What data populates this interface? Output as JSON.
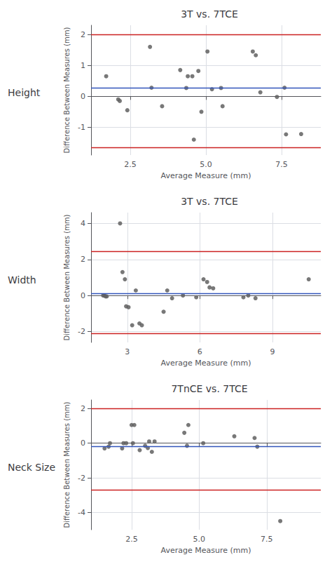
{
  "chart_data": [
    {
      "type": "scatter",
      "title": "3T vs. 7TCE",
      "annotations": [
        "Height"
      ],
      "xlabel": "Average Measure (mm)",
      "ylabel": "Difference Between Measures (mm)",
      "x": [
        1.7,
        2.1,
        2.15,
        2.4,
        3.15,
        3.2,
        3.55,
        4.15,
        4.35,
        4.4,
        4.55,
        4.6,
        4.75,
        4.85,
        5.05,
        5.2,
        5.5,
        5.55,
        6.55,
        6.65,
        6.8,
        7.35,
        7.6,
        7.65,
        8.15
      ],
      "values": [
        0.65,
        -0.1,
        -0.15,
        -0.45,
        1.6,
        0.28,
        -0.32,
        0.85,
        0.27,
        0.65,
        0.65,
        -1.4,
        0.82,
        -0.5,
        1.45,
        0.23,
        0.27,
        -0.32,
        1.45,
        1.33,
        0.13,
        -0.02,
        0.28,
        -1.23,
        -1.22
      ],
      "color": "#606060",
      "lines": [
        {
          "value": 0.27,
          "color": "#3355bb"
        },
        {
          "value": 2.0,
          "color": "#cc2222"
        },
        {
          "value": -1.65,
          "color": "#cc2222"
        }
      ],
      "xlim": [
        1.2,
        8.8
      ],
      "ylim": [
        -1.9,
        2.3
      ],
      "xticks": [
        2.5,
        {
          "value": 5.0,
          "label": "5.0"
        },
        7.5
      ],
      "yticks": [
        -1,
        0,
        1,
        2
      ],
      "grid": true
    },
    {
      "type": "scatter",
      "title": "3T vs. 7TCE",
      "annotations": [
        "Width"
      ],
      "xlabel": "Average Measure (mm)",
      "ylabel": "Difference Between Measures (mm)",
      "x": [
        2.0,
        2.05,
        2.1,
        2.15,
        2.7,
        2.8,
        2.9,
        2.95,
        3.05,
        3.2,
        3.35,
        3.5,
        3.6,
        4.5,
        4.65,
        4.85,
        5.3,
        5.85,
        6.15,
        6.3,
        6.4,
        6.55,
        7.8,
        8.0,
        8.3,
        10.5
      ],
      "values": [
        0.0,
        0.0,
        -0.05,
        -0.05,
        4.0,
        1.3,
        0.9,
        -0.6,
        -0.65,
        -1.65,
        0.28,
        -1.55,
        -1.65,
        -0.9,
        0.28,
        -0.15,
        0.0,
        -0.1,
        0.9,
        0.75,
        0.45,
        0.4,
        -0.1,
        0.0,
        -0.15,
        0.9
      ],
      "color": "#606060",
      "lines": [
        {
          "value": 0.12,
          "color": "#3355bb"
        },
        {
          "value": 2.45,
          "color": "#cc2222"
        },
        {
          "value": -2.1,
          "color": "#cc2222"
        }
      ],
      "xlim": [
        1.5,
        11.0
      ],
      "ylim": [
        -2.6,
        4.6
      ],
      "xticks": [
        3,
        6,
        9
      ],
      "yticks": [
        -2,
        0,
        2,
        4
      ],
      "grid": true
    },
    {
      "type": "scatter",
      "title": "7TnCE vs. 7TCE",
      "annotations": [
        "Neck Size"
      ],
      "xlabel": "Average Measure (mm)",
      "ylabel": "Difference Between Measures (mm)",
      "x": [
        1.5,
        1.65,
        1.7,
        2.15,
        2.2,
        2.3,
        2.5,
        2.55,
        2.6,
        2.8,
        3.0,
        3.1,
        3.15,
        3.25,
        3.35,
        4.45,
        4.55,
        4.6,
        5.15,
        6.3,
        7.05,
        7.15,
        8.0
      ],
      "values": [
        -0.3,
        -0.2,
        0.0,
        -0.3,
        0.0,
        0.0,
        1.05,
        0.0,
        1.05,
        -0.4,
        -0.15,
        -0.28,
        0.1,
        -0.5,
        0.1,
        0.6,
        -0.15,
        1.05,
        0.0,
        0.4,
        0.3,
        -0.2,
        -4.5
      ],
      "color": "#606060",
      "lines": [
        {
          "value": -0.2,
          "color": "#3355bb"
        },
        {
          "value": 2.0,
          "color": "#cc2222"
        },
        {
          "value": -2.7,
          "color": "#cc2222"
        }
      ],
      "xlim": [
        1.0,
        9.5
      ],
      "ylim": [
        -5.0,
        2.5
      ],
      "xticks": [
        2.5,
        {
          "value": 5.0,
          "label": "5.0"
        },
        7.5
      ],
      "yticks": [
        -4,
        -2,
        0,
        2
      ],
      "grid": true
    }
  ]
}
